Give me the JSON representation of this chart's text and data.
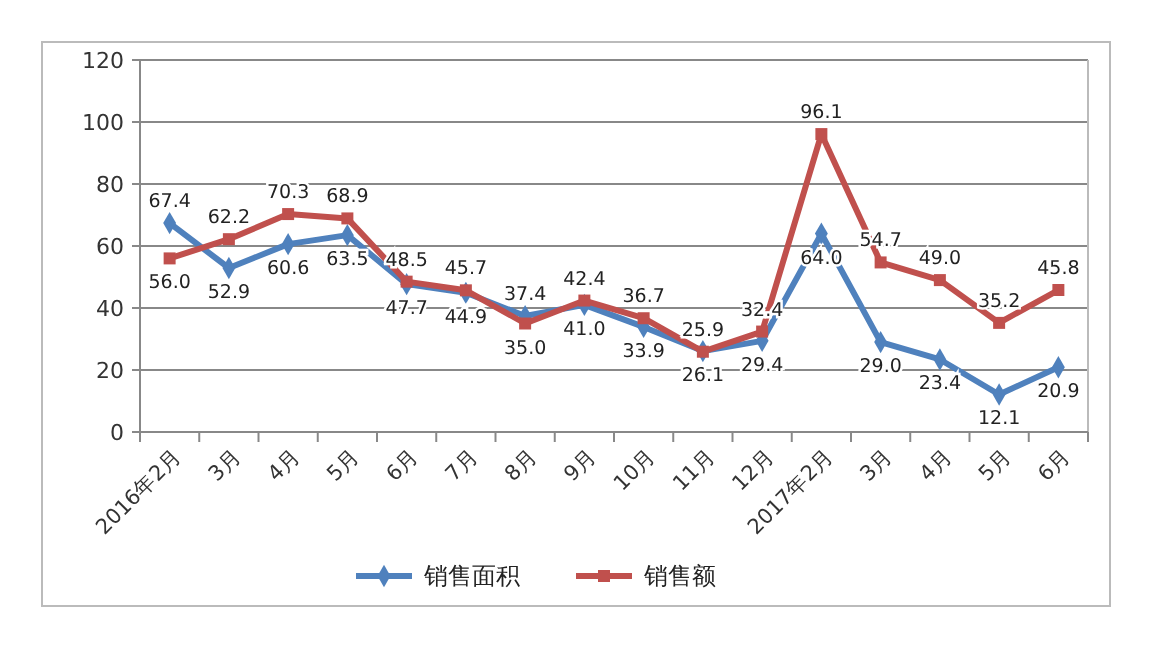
{
  "chart_data": {
    "type": "line",
    "categories": [
      "2016年2月",
      "3月",
      "4月",
      "5月",
      "6月",
      "7月",
      "8月",
      "9月",
      "10月",
      "11月",
      "12月",
      "2017年2月",
      "3月",
      "4月",
      "5月",
      "6月"
    ],
    "series": [
      {
        "name": "销售面积",
        "color": "#4f81bd",
        "marker": "diamond",
        "values": [
          67.4,
          52.9,
          60.6,
          63.5,
          47.7,
          44.9,
          37.4,
          41.0,
          33.9,
          26.1,
          29.4,
          64.0,
          29.0,
          23.4,
          12.1,
          20.9
        ],
        "value_labels": [
          "67.4",
          "52.9",
          "60.6",
          "63.5",
          "47.7",
          "44.9",
          "37.4",
          "41.0",
          "33.9",
          "26.1",
          "29.4",
          "64.0",
          "29.0",
          "23.4",
          "12.1",
          "20.9"
        ]
      },
      {
        "name": "销售额",
        "color": "#c0504d",
        "marker": "square",
        "values": [
          56.0,
          62.2,
          70.3,
          68.9,
          48.5,
          45.7,
          35.0,
          42.4,
          36.7,
          25.9,
          32.4,
          96.1,
          54.7,
          49.0,
          35.2,
          45.8
        ],
        "value_labels": [
          "56.0",
          "62.2",
          "70.3",
          "68.9",
          "48.5",
          "45.7",
          "35.0",
          "42.4",
          "36.7",
          "25.9",
          "32.4",
          "96.1",
          "54.7",
          "49.0",
          "35.2",
          "45.8"
        ]
      }
    ],
    "ylim": [
      0,
      120
    ],
    "yticks": [
      0,
      20,
      40,
      60,
      80,
      100,
      120
    ],
    "grid": "y",
    "legend": "bottom",
    "line_style": "solid"
  }
}
